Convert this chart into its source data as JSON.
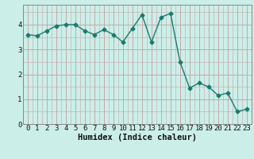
{
  "x": [
    0,
    1,
    2,
    3,
    4,
    5,
    6,
    7,
    8,
    9,
    10,
    11,
    12,
    13,
    14,
    15,
    16,
    17,
    18,
    19,
    20,
    21,
    22,
    23
  ],
  "y": [
    3.6,
    3.55,
    3.75,
    3.95,
    4.0,
    4.0,
    3.75,
    3.6,
    3.8,
    3.6,
    3.3,
    3.85,
    4.4,
    3.3,
    4.3,
    4.45,
    2.5,
    1.45,
    1.65,
    1.5,
    1.15,
    1.25,
    0.5,
    0.6
  ],
  "line_color": "#1a7a6e",
  "bg_color": "#cceee8",
  "plot_bg_color": "#cceee8",
  "grid_color": "#c4a8a8",
  "xlabel": "Humidex (Indice chaleur)",
  "xlim": [
    -0.5,
    23.5
  ],
  "ylim": [
    0,
    4.8
  ],
  "yticks": [
    0,
    1,
    2,
    3,
    4
  ],
  "xticks": [
    0,
    1,
    2,
    3,
    4,
    5,
    6,
    7,
    8,
    9,
    10,
    11,
    12,
    13,
    14,
    15,
    16,
    17,
    18,
    19,
    20,
    21,
    22,
    23
  ],
  "marker": "D",
  "markersize": 2.5,
  "linewidth": 1.0,
  "xlabel_fontsize": 7.5,
  "tick_fontsize": 6.5,
  "spine_color": "#888888"
}
